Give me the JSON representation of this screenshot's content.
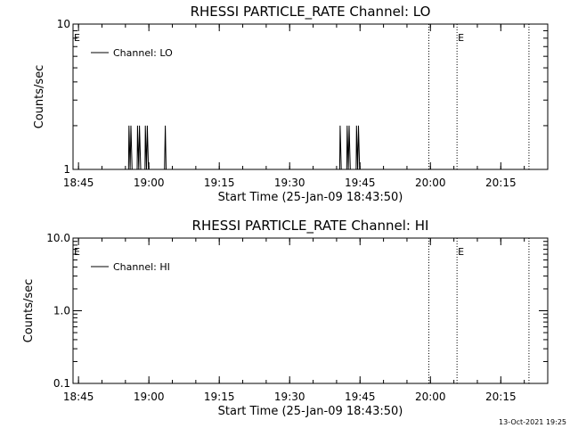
{
  "chart_data": [
    {
      "type": "line",
      "title": "RHESSI PARTICLE_RATE Channel: LO",
      "xlabel": "Start Time (25-Jan-09 18:43:50)",
      "ylabel": "Counts/sec",
      "yscale": "log",
      "ylim": [
        1,
        10
      ],
      "xlim": [
        "18:43:50",
        "20:25:00"
      ],
      "x_ticks": [
        "18:45",
        "19:00",
        "19:15",
        "19:30",
        "19:45",
        "20:00",
        "20:15"
      ],
      "y_ticks": [
        "1",
        "10"
      ],
      "grid": false,
      "legend": {
        "position": "top-left",
        "entries": [
          "Channel: LO"
        ]
      },
      "markers": [
        {
          "time": "18:45:00",
          "label": "E"
        },
        {
          "time": "19:59:40",
          "label": ""
        },
        {
          "time": "20:05:40",
          "label": "E"
        },
        {
          "time": "20:21:00",
          "label": ""
        }
      ],
      "series": [
        {
          "name": "Channel: LO",
          "points": [
            [
              "18:44:00",
              1
            ],
            [
              "18:55:40",
              1
            ],
            [
              "18:55:45",
              2
            ],
            [
              "18:56:00",
              1
            ],
            [
              "18:56:10",
              2
            ],
            [
              "18:56:25",
              1
            ],
            [
              "18:57:30",
              1
            ],
            [
              "18:57:35",
              2
            ],
            [
              "18:57:50",
              1
            ],
            [
              "18:58:00",
              2
            ],
            [
              "18:58:15",
              1
            ],
            [
              "18:59:10",
              1
            ],
            [
              "18:59:15",
              2
            ],
            [
              "18:59:30",
              1
            ],
            [
              "18:59:40",
              2
            ],
            [
              "18:59:55",
              1
            ],
            [
              "19:03:20",
              1
            ],
            [
              "19:03:30",
              2
            ],
            [
              "19:03:40",
              1
            ],
            [
              "19:40:40",
              1
            ],
            [
              "19:40:45",
              2
            ],
            [
              "19:41:00",
              1
            ],
            [
              "19:42:10",
              1
            ],
            [
              "19:42:15",
              2
            ],
            [
              "19:42:30",
              1
            ],
            [
              "19:42:40",
              2
            ],
            [
              "19:42:55",
              1
            ],
            [
              "19:44:10",
              1
            ],
            [
              "19:44:15",
              2
            ],
            [
              "19:44:30",
              1
            ],
            [
              "19:44:40",
              2
            ],
            [
              "19:44:55",
              1
            ],
            [
              "19:46:30",
              1
            ]
          ]
        }
      ]
    },
    {
      "type": "line",
      "title": "RHESSI PARTICLE_RATE Channel: HI",
      "xlabel": "Start Time (25-Jan-09 18:43:50)",
      "ylabel": "Counts/sec",
      "yscale": "log",
      "ylim": [
        0.1,
        10
      ],
      "xlim": [
        "18:43:50",
        "20:25:00"
      ],
      "x_ticks": [
        "18:45",
        "19:00",
        "19:15",
        "19:30",
        "19:45",
        "20:00",
        "20:15"
      ],
      "y_ticks": [
        "0.1",
        "1.0",
        "10.0"
      ],
      "grid": false,
      "legend": {
        "position": "top-left",
        "entries": [
          "Channel: HI"
        ]
      },
      "markers": [
        {
          "time": "18:45:00",
          "label": "E"
        },
        {
          "time": "19:59:40",
          "label": ""
        },
        {
          "time": "20:05:40",
          "label": "E"
        },
        {
          "time": "20:21:00",
          "label": ""
        }
      ],
      "series": [
        {
          "name": "Channel: HI",
          "points": []
        }
      ]
    }
  ],
  "footer": {
    "timestamp": "13-Oct-2021 19:25"
  }
}
